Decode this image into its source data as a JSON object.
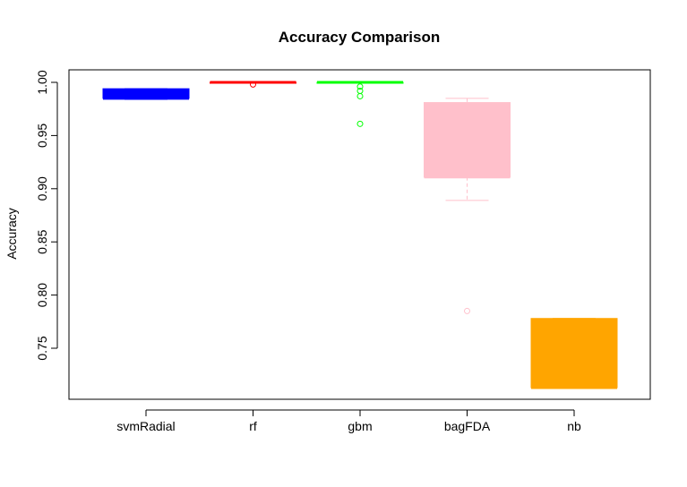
{
  "chart_data": {
    "type": "boxplot",
    "title": "Accuracy Comparison",
    "xlabel": "",
    "ylabel": "Accuracy",
    "ylim": [
      0.7,
      1.01
    ],
    "yticks": [
      0.75,
      0.8,
      0.85,
      0.9,
      0.95,
      1.0
    ],
    "ytick_labels": [
      "0.75",
      "0.80",
      "0.85",
      "0.90",
      "0.95",
      "1.00"
    ],
    "grid": false,
    "categories": [
      "svmRadial",
      "rf",
      "gbm",
      "bagFDA",
      "nb"
    ],
    "boxes": [
      {
        "name": "svmRadial",
        "color": "#0000FF",
        "whisker_low": 0.984,
        "q1": 0.985,
        "median": 0.985,
        "q3": 0.994,
        "whisker_high": 0.994,
        "outliers": []
      },
      {
        "name": "rf",
        "color": "#FF0000",
        "whisker_low": 1.0,
        "q1": 1.0,
        "median": 1.0,
        "q3": 1.0,
        "whisker_high": 1.0,
        "outliers": [
          0.998
        ]
      },
      {
        "name": "gbm",
        "color": "#00FF00",
        "whisker_low": 1.0,
        "q1": 1.0,
        "median": 1.0,
        "q3": 1.0,
        "whisker_high": 1.0,
        "outliers": [
          0.996,
          0.992,
          0.987,
          0.961
        ]
      },
      {
        "name": "bagFDA",
        "color": "#FFC0CB",
        "whisker_low": 0.889,
        "q1": 0.911,
        "median": 0.911,
        "q3": 0.981,
        "whisker_high": 0.985,
        "outliers": [
          0.785
        ]
      },
      {
        "name": "nb",
        "color": "#FFA500",
        "whisker_low": 0.713,
        "q1": 0.713,
        "median": 0.713,
        "q3": 0.778,
        "whisker_high": 0.778,
        "outliers": []
      }
    ]
  }
}
